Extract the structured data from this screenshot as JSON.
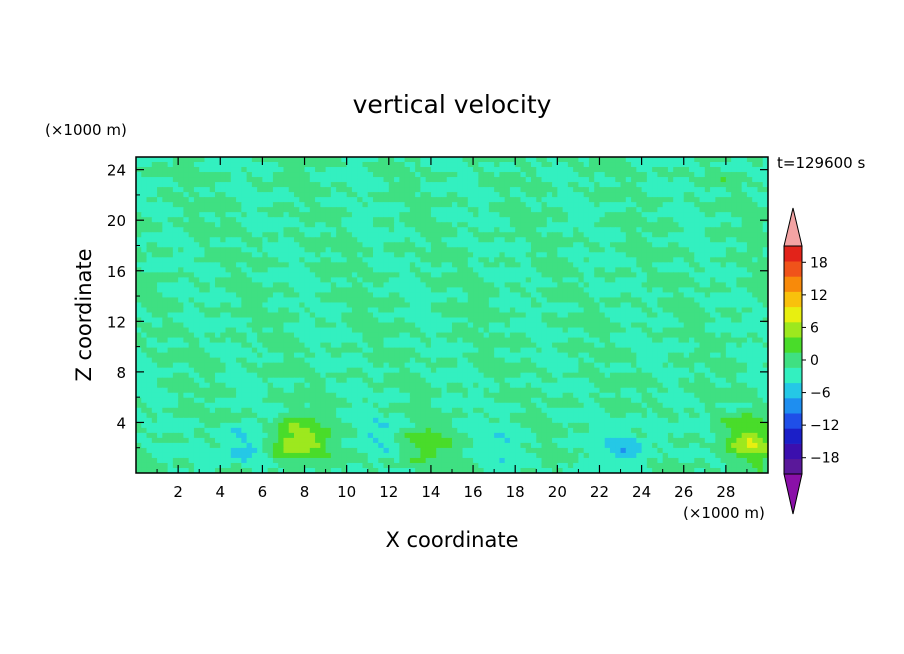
{
  "chart_data": {
    "type": "heatmap",
    "title": "vertical velocity",
    "xlabel": "X coordinate",
    "ylabel": "Z coordinate",
    "x_unit_label": "(×1000 m)",
    "y_unit_label": "(×1000 m)",
    "time_label": "t=129600 s",
    "xlim": [
      0,
      30
    ],
    "ylim": [
      0,
      25
    ],
    "x_ticks": [
      2,
      4,
      6,
      8,
      10,
      12,
      14,
      16,
      18,
      20,
      22,
      24,
      26,
      28
    ],
    "y_ticks": [
      4,
      8,
      12,
      16,
      20,
      24
    ],
    "colorbar": {
      "levels": [
        -21,
        -18,
        -15,
        -12,
        -9,
        -6,
        -3,
        0,
        3,
        6,
        9,
        12,
        15,
        18,
        21
      ],
      "tick_labels": [
        "18",
        "12",
        "6",
        "0",
        "−6",
        "−12",
        "−18"
      ],
      "tick_values": [
        18,
        12,
        6,
        0,
        -6,
        -12,
        -18
      ],
      "colors": [
        "#5a189a",
        "#3b0fae",
        "#1b1fc8",
        "#1f4fe8",
        "#1e8ef0",
        "#25c8e6",
        "#33f0c0",
        "#3fe082",
        "#49dc2a",
        "#9de81e",
        "#e8ef10",
        "#f9c10c",
        "#f88a0a",
        "#f0531a",
        "#e2231a"
      ],
      "over_color": "#f3a3a3",
      "under_color": "#8a10a8"
    },
    "background_value": 0,
    "features": [
      {
        "x": 7.6,
        "z": 2.5,
        "peak": 9,
        "description": "updraft"
      },
      {
        "x": 13.8,
        "z": 2.2,
        "peak": 4
      },
      {
        "x": 29.2,
        "z": 2.5,
        "peak": 8
      },
      {
        "x": 5.0,
        "z": 2.0,
        "peak": -4
      },
      {
        "x": 23.3,
        "z": 2.0,
        "peak": -4
      },
      {
        "x": 11.5,
        "z": 3.2,
        "peak": -2
      },
      {
        "x": 17.5,
        "z": 2.5,
        "peak": -2
      }
    ]
  }
}
